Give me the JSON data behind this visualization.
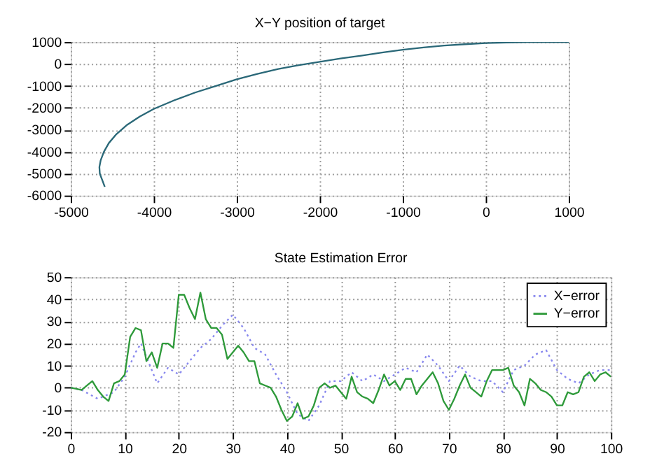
{
  "chart_data": [
    {
      "type": "line",
      "title": "X−Y position of target",
      "xlim": [
        -5000,
        1000
      ],
      "ylim": [
        -6000,
        1000
      ],
      "xticks": [
        -5000,
        -4000,
        -3000,
        -2000,
        -1000,
        0,
        1000
      ],
      "yticks": [
        -6000,
        -5000,
        -4000,
        -3000,
        -2000,
        -1000,
        0,
        1000
      ],
      "grid": true,
      "legend": false,
      "line_style": "solid",
      "series": [
        {
          "color": "#2a6878",
          "x": [
            -4590,
            -4620,
            -4650,
            -4655,
            -4640,
            -4600,
            -4540,
            -4450,
            -4330,
            -4170,
            -4000,
            -3750,
            -3500,
            -3250,
            -3000,
            -2750,
            -2500,
            -2250,
            -2000,
            -1750,
            -1500,
            -1250,
            -1000,
            -750,
            -500,
            -250,
            0,
            250,
            500,
            750,
            1000
          ],
          "values": [
            -5600,
            -5300,
            -5000,
            -4700,
            -4400,
            -4000,
            -3600,
            -3200,
            -2800,
            -2400,
            -2050,
            -1650,
            -1300,
            -1000,
            -700,
            -450,
            -230,
            -50,
            100,
            250,
            380,
            520,
            650,
            750,
            840,
            900,
            950,
            980,
            1000,
            1000,
            1000
          ]
        }
      ]
    },
    {
      "type": "line",
      "title": "State Estimation Error",
      "xlim": [
        0,
        100
      ],
      "ylim": [
        -20,
        50
      ],
      "xticks": [
        0,
        10,
        20,
        30,
        40,
        50,
        60,
        70,
        80,
        90,
        100
      ],
      "yticks": [
        -20,
        -10,
        0,
        10,
        20,
        30,
        40,
        50
      ],
      "grid": true,
      "legend": "top right",
      "series": [
        {
          "name": "X−error",
          "color": "#8888ee",
          "line_style": "dotted",
          "x": [
            0,
            2,
            5,
            8,
            10,
            12,
            13,
            14,
            16,
            18,
            20,
            22,
            24,
            26,
            28,
            30,
            32,
            34,
            36,
            38,
            40,
            42,
            44,
            46,
            48,
            50,
            52,
            54,
            56,
            58,
            60,
            62,
            64,
            66,
            68,
            70,
            72,
            74,
            76,
            78,
            80,
            82,
            84,
            86,
            88,
            90,
            92,
            94,
            96,
            98,
            100
          ],
          "values": [
            0,
            -1,
            -5,
            -2,
            5,
            16,
            20,
            14,
            2,
            9,
            6,
            12,
            18,
            22,
            28,
            33,
            27,
            18,
            15,
            6,
            -2,
            -12,
            -15,
            -8,
            3,
            3,
            7,
            3,
            6,
            3,
            6,
            9,
            7,
            15,
            10,
            3,
            10,
            5,
            3,
            3,
            -2,
            8,
            10,
            15,
            17,
            8,
            4,
            2,
            6,
            8,
            8
          ]
        },
        {
          "name": "Y−error",
          "color": "#2e9a3a",
          "line_style": "solid",
          "x": [
            0,
            1,
            2,
            3,
            4,
            5,
            6,
            7,
            8,
            9,
            10,
            11,
            12,
            13,
            14,
            15,
            16,
            17,
            18,
            19,
            20,
            21,
            22,
            23,
            24,
            25,
            26,
            27,
            28,
            29,
            30,
            31,
            32,
            33,
            34,
            35,
            36,
            37,
            38,
            39,
            40,
            41,
            42,
            43,
            44,
            45,
            46,
            47,
            48,
            49,
            50,
            51,
            52,
            53,
            54,
            55,
            56,
            57,
            58,
            59,
            60,
            61,
            62,
            63,
            64,
            65,
            66,
            67,
            68,
            69,
            70,
            71,
            72,
            73,
            74,
            75,
            76,
            77,
            78,
            79,
            80,
            81,
            82,
            83,
            84,
            85,
            86,
            87,
            88,
            89,
            90,
            91,
            92,
            93,
            94,
            95,
            96,
            97,
            98,
            99,
            100
          ],
          "values": [
            0,
            -0.5,
            -1,
            1,
            3,
            -1,
            -4,
            -6,
            2,
            3,
            6,
            23,
            27,
            26,
            12,
            16,
            9,
            20,
            20,
            18,
            42,
            42,
            36,
            31,
            43,
            31,
            27,
            27,
            24,
            13,
            16,
            19,
            16,
            12,
            12,
            2,
            1,
            0,
            -4,
            -10,
            -15,
            -13,
            -7,
            -14,
            -13,
            -8,
            0,
            2,
            0,
            1,
            -2,
            -5,
            5,
            -2,
            -4,
            -5,
            -7,
            -1,
            6,
            1,
            3,
            -1,
            4,
            4,
            -3,
            1,
            4,
            7,
            2,
            -6,
            -10,
            -5,
            1,
            6,
            0,
            -2,
            -4,
            3,
            8,
            8,
            8,
            9,
            1,
            -2,
            -8,
            4,
            2,
            -1,
            -2,
            -4,
            -8,
            -8,
            -2,
            -3,
            -2,
            5,
            7,
            3,
            6,
            7,
            5
          ]
        }
      ]
    }
  ]
}
